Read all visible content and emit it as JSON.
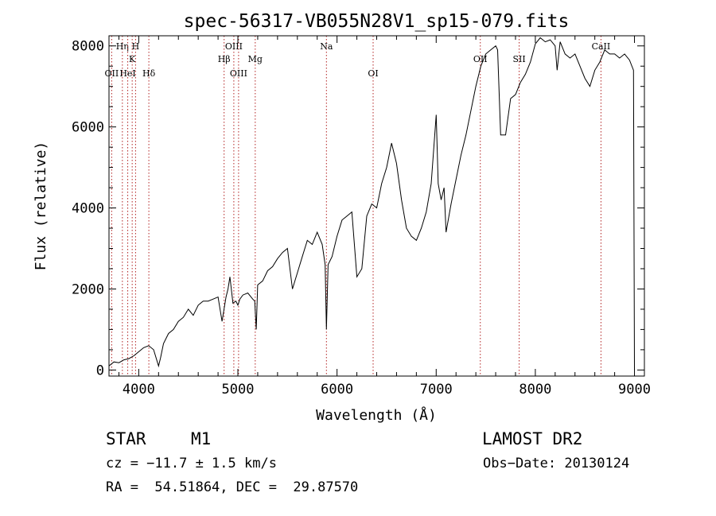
{
  "chart_data": {
    "type": "line",
    "title": "spec-56317-VB055N28V1_sp15-079.fits",
    "xlabel": "Wavelength (Å)",
    "ylabel": "Flux (relative)",
    "xlim": [
      3700,
      9100
    ],
    "ylim": [
      -150,
      8250
    ],
    "x_ticks": [
      4000,
      5000,
      6000,
      7000,
      8000,
      9000
    ],
    "y_ticks": [
      0,
      2000,
      4000,
      6000,
      8000
    ],
    "grid": false,
    "series": [
      {
        "x": [
          3700,
          3750,
          3800,
          3850,
          3900,
          3950,
          4000,
          4050,
          4100,
          4150,
          4200,
          4220,
          4250,
          4300,
          4350,
          4400,
          4450,
          4500,
          4550,
          4600,
          4650,
          4700,
          4750,
          4800,
          4840,
          4860,
          4880,
          4900,
          4920,
          4950,
          4980,
          5000,
          5020,
          5050,
          5100,
          5150,
          5170,
          5185,
          5200,
          5250,
          5300,
          5350,
          5400,
          5450,
          5500,
          5550,
          5600,
          5650,
          5700,
          5750,
          5800,
          5850,
          5880,
          5893,
          5910,
          5950,
          6000,
          6050,
          6100,
          6150,
          6200,
          6250,
          6300,
          6350,
          6400,
          6450,
          6500,
          6550,
          6600,
          6650,
          6700,
          6750,
          6800,
          6850,
          6900,
          6950,
          7000,
          7020,
          7050,
          7080,
          7100,
          7150,
          7200,
          7250,
          7300,
          7350,
          7400,
          7450,
          7500,
          7550,
          7600,
          7620,
          7650,
          7700,
          7750,
          7800,
          7850,
          7900,
          7950,
          8000,
          8050,
          8100,
          8150,
          8200,
          8220,
          8250,
          8300,
          8350,
          8400,
          8450,
          8500,
          8550,
          8600,
          8650,
          8700,
          8750,
          8800,
          8850,
          8900,
          8950,
          8990,
          9000
        ],
        "y": [
          100,
          200,
          180,
          250,
          280,
          350,
          450,
          550,
          600,
          500,
          100,
          300,
          650,
          900,
          1000,
          1200,
          1300,
          1500,
          1350,
          1600,
          1700,
          1700,
          1750,
          1800,
          1200,
          1500,
          1800,
          2000,
          2300,
          1650,
          1700,
          1600,
          1750,
          1850,
          1900,
          1750,
          1700,
          1000,
          2100,
          2200,
          2450,
          2550,
          2750,
          2900,
          3000,
          2000,
          2400,
          2800,
          3200,
          3100,
          3400,
          3100,
          2600,
          1000,
          2600,
          2800,
          3300,
          3700,
          3800,
          3900,
          2300,
          2500,
          3800,
          4100,
          4000,
          4600,
          5000,
          5600,
          5100,
          4200,
          3500,
          3300,
          3200,
          3500,
          3900,
          4600,
          6300,
          4600,
          4200,
          4500,
          3400,
          4100,
          4700,
          5300,
          5800,
          6400,
          7000,
          7500,
          7800,
          7900,
          8000,
          7900,
          5800,
          5800,
          6700,
          6800,
          7100,
          7300,
          7600,
          8050,
          8200,
          8100,
          8150,
          8000,
          7400,
          8100,
          7800,
          7700,
          7800,
          7500,
          7200,
          7000,
          7400,
          7600,
          7900,
          7800,
          7800,
          7700,
          7800,
          7650,
          7400,
          0
        ]
      }
    ],
    "lines": [
      {
        "label": "OII",
        "x": 3727,
        "row": 3
      },
      {
        "label": "Hη",
        "x": 3835,
        "row": 1
      },
      {
        "label": "HeI",
        "x": 3889,
        "row": 3
      },
      {
        "label": "K",
        "x": 3934,
        "row": 2
      },
      {
        "label": "H",
        "x": 3968,
        "row": 1
      },
      {
        "label": "Hδ",
        "x": 4102,
        "row": 3
      },
      {
        "label": "Hβ",
        "x": 4861,
        "row": 2
      },
      {
        "label": "OIII",
        "x": 4959,
        "row": 1
      },
      {
        "label": "OIII",
        "x": 5007,
        "row": 3
      },
      {
        "label": "Mg",
        "x": 5175,
        "row": 2
      },
      {
        "label": "Na",
        "x": 5893,
        "row": 1
      },
      {
        "label": "OI",
        "x": 6364,
        "row": 3
      },
      {
        "label": "OII",
        "x": 7445,
        "row": 2
      },
      {
        "label": "SII",
        "x": 7837,
        "row": 2
      },
      {
        "label": "CaII",
        "x": 8662,
        "row": 1
      }
    ]
  },
  "info": {
    "class_label": "STAR",
    "subclass_label": "M1",
    "survey": "LAMOST DR2",
    "cz": "cz = −11.7 ± 1.5 km/s",
    "obs_date": "Obs−Date: 20130124",
    "coords": "RA =  54.51864, DEC =  29.87570"
  }
}
